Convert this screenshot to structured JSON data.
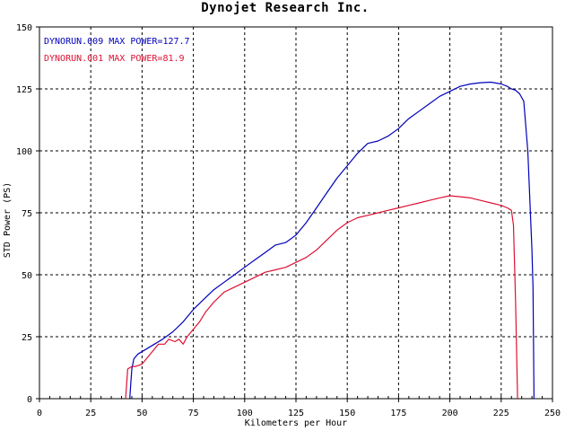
{
  "chart_data": {
    "type": "line",
    "title": "Dynojet  Research  Inc.",
    "xlabel": "Kilometers per Hour",
    "ylabel": "STD Power (PS)",
    "xlim": [
      0,
      250
    ],
    "ylim": [
      0,
      150
    ],
    "xticks": [
      0,
      25,
      50,
      75,
      100,
      125,
      150,
      175,
      200,
      225,
      250
    ],
    "yticks": [
      0,
      25,
      50,
      75,
      100,
      125,
      150
    ],
    "grid": true,
    "legend_position": "top-left",
    "series": [
      {
        "name": "DYNORUN.009",
        "legend_text": "DYNORUN.009   MAX POWER=127.7",
        "color": "#0000bb",
        "x": [
          44,
          44.5,
          45,
          46,
          48,
          52,
          56,
          60,
          65,
          70,
          75,
          80,
          85,
          90,
          95,
          100,
          105,
          110,
          115,
          120,
          125,
          130,
          135,
          140,
          145,
          150,
          155,
          160,
          165,
          170,
          175,
          180,
          185,
          190,
          195,
          200,
          205,
          210,
          215,
          220,
          225,
          228,
          230,
          232,
          234,
          236,
          238,
          240,
          240.5,
          241
        ],
        "y": [
          0,
          6,
          12,
          16,
          18,
          20,
          22,
          24,
          27,
          31,
          36,
          40,
          44,
          47,
          50,
          53,
          56,
          59,
          62,
          63,
          66,
          71,
          77,
          83,
          89,
          94,
          99,
          103,
          104,
          106,
          109,
          113,
          116,
          119,
          122,
          124,
          126,
          127,
          127.5,
          127.7,
          127,
          126,
          125,
          124.5,
          123,
          120,
          100,
          60,
          45,
          0
        ]
      },
      {
        "name": "DYNORUN.001",
        "legend_text": "DYNORUN.001   MAX POWER=81.9",
        "color": "#dd1133",
        "x": [
          42,
          42.5,
          43,
          45,
          47,
          50,
          53,
          56,
          58,
          61,
          63,
          66,
          68,
          70,
          72,
          75,
          78,
          81,
          85,
          90,
          95,
          100,
          105,
          110,
          115,
          120,
          125,
          130,
          135,
          140,
          145,
          150,
          155,
          160,
          165,
          170,
          175,
          180,
          185,
          190,
          195,
          200,
          205,
          210,
          215,
          220,
          225,
          228,
          230,
          231,
          232,
          233
        ],
        "y": [
          0,
          6,
          12,
          13,
          13,
          14,
          17,
          20,
          22,
          22,
          24,
          23,
          24,
          22,
          25,
          28,
          31,
          35,
          39,
          43,
          45,
          47,
          49,
          51,
          52,
          53,
          55,
          57,
          60,
          64,
          68,
          71,
          73,
          74,
          75,
          76,
          77,
          78,
          79,
          80,
          81,
          81.9,
          81.5,
          81,
          80,
          79,
          78,
          77,
          76,
          70,
          40,
          0
        ]
      }
    ]
  }
}
